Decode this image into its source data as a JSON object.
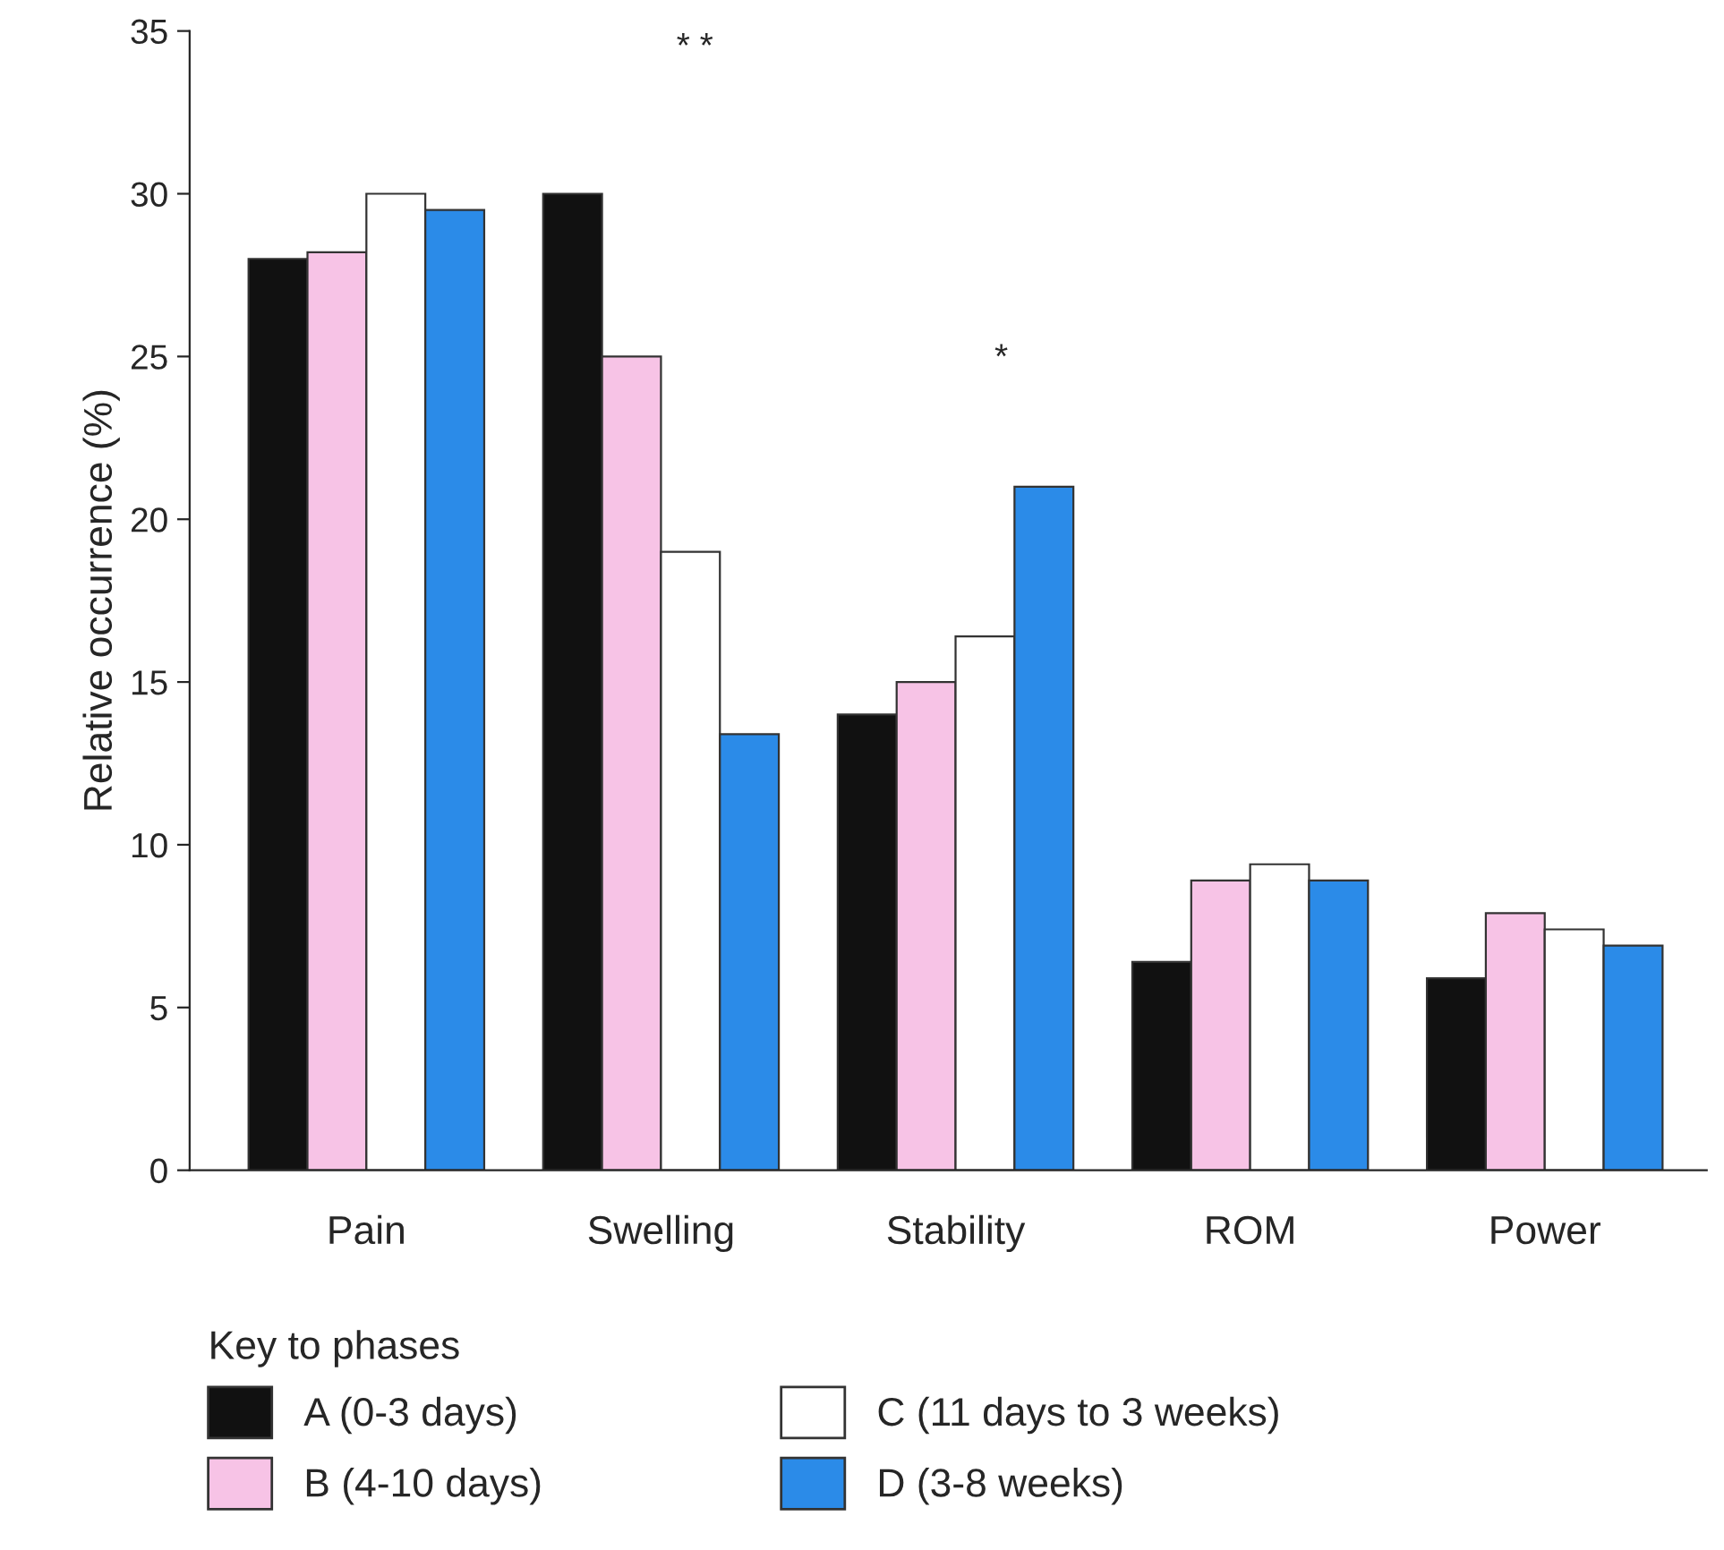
{
  "chart_data": {
    "type": "bar",
    "ylabel": "Relative occurrence (%)",
    "legend_title": "Key to phases",
    "categories": [
      "Pain",
      "Swelling",
      "Stability",
      "ROM",
      "Power"
    ],
    "series": [
      {
        "name": "A (0-3 days)",
        "color": "#111111",
        "values": [
          28.0,
          30.0,
          14.0,
          6.4,
          5.9
        ]
      },
      {
        "name": "B (4-10 days)",
        "color": "#f7c3e6",
        "values": [
          28.2,
          25.0,
          15.0,
          8.9,
          7.9
        ]
      },
      {
        "name": "C (11 days to 3 weeks)",
        "color": "#ffffff",
        "values": [
          30.0,
          19.0,
          16.4,
          9.4,
          7.4
        ]
      },
      {
        "name": "D (3-8 weeks)",
        "color": "#2b8be8",
        "values": [
          29.5,
          13.4,
          21.0,
          8.9,
          6.9
        ]
      }
    ],
    "ylim": [
      0,
      35
    ],
    "yticks": [
      0,
      5,
      10,
      15,
      20,
      25,
      30,
      35
    ],
    "annotations": [
      "* *",
      "*"
    ],
    "legend": "bottom",
    "grid": false
  }
}
